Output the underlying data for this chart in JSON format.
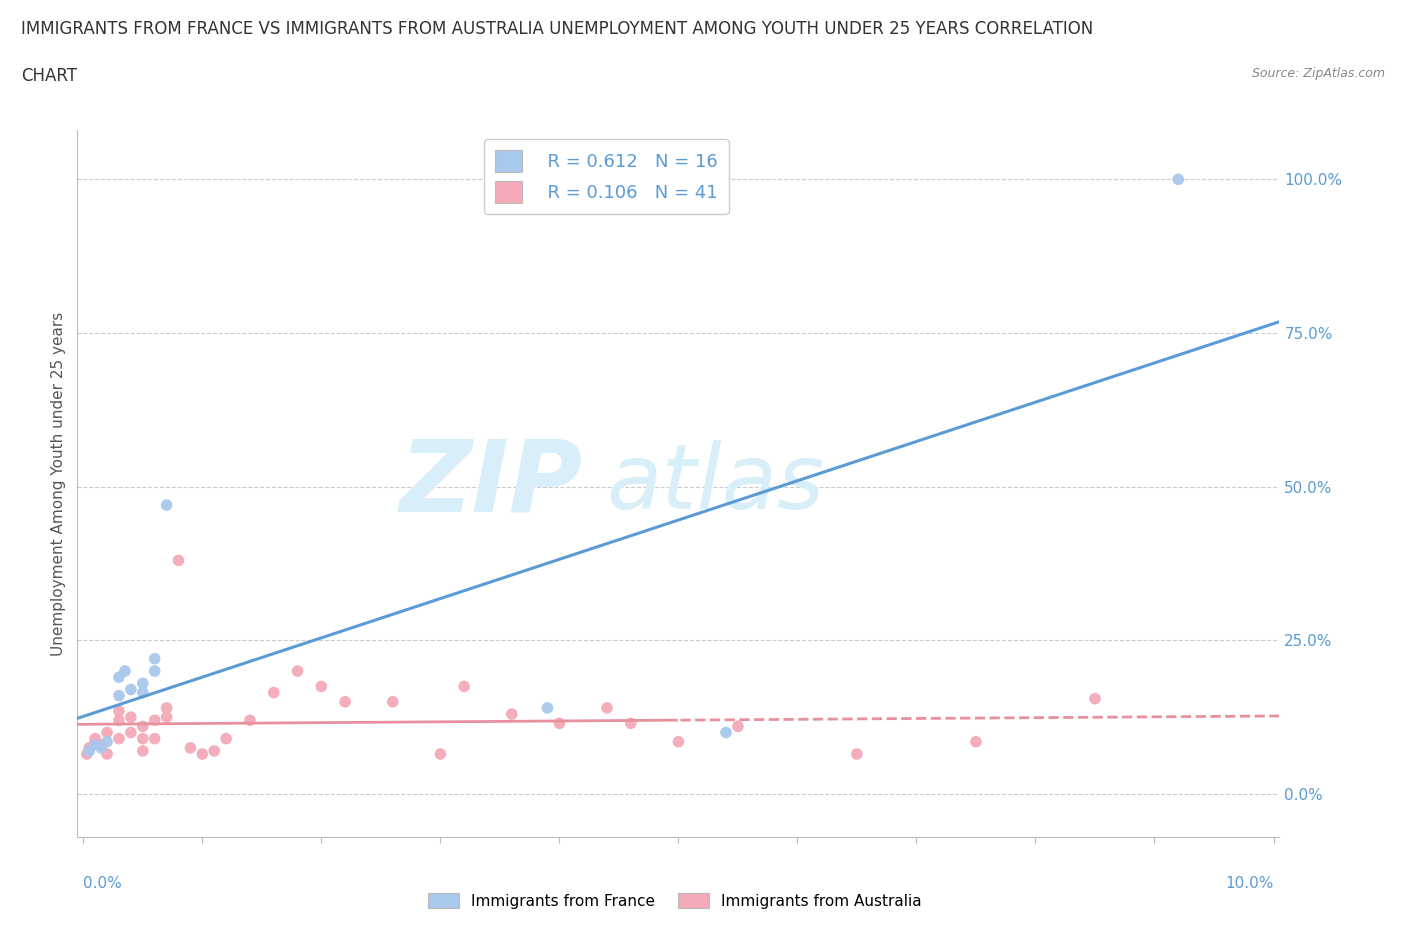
{
  "title_line1": "IMMIGRANTS FROM FRANCE VS IMMIGRANTS FROM AUSTRALIA UNEMPLOYMENT AMONG YOUTH UNDER 25 YEARS CORRELATION",
  "title_line2": "CHART",
  "source": "Source: ZipAtlas.com",
  "ylabel": "Unemployment Among Youth under 25 years",
  "ytick_labels": [
    "0.0%",
    "25.0%",
    "50.0%",
    "75.0%",
    "100.0%"
  ],
  "ytick_values": [
    0.0,
    0.25,
    0.5,
    0.75,
    1.0
  ],
  "xlim": [
    -0.0005,
    0.1005
  ],
  "ylim": [
    -0.07,
    1.08
  ],
  "color_france": "#A8C8EC",
  "color_australia": "#F4AAB8",
  "color_france_line": "#5B9BD5",
  "color_australia_line": "#E8909E",
  "legend_R_france": "R = 0.612",
  "legend_N_france": "N = 16",
  "legend_R_australia": "R = 0.106",
  "legend_N_australia": "N = 41",
  "france_x": [
    0.0005,
    0.001,
    0.0015,
    0.002,
    0.003,
    0.003,
    0.0035,
    0.004,
    0.005,
    0.005,
    0.006,
    0.006,
    0.007,
    0.039,
    0.054,
    0.092
  ],
  "france_y": [
    0.07,
    0.08,
    0.075,
    0.085,
    0.16,
    0.19,
    0.2,
    0.17,
    0.18,
    0.165,
    0.2,
    0.22,
    0.47,
    0.14,
    0.1,
    1.0
  ],
  "australia_x": [
    0.0003,
    0.0005,
    0.001,
    0.001,
    0.0015,
    0.002,
    0.002,
    0.003,
    0.003,
    0.003,
    0.004,
    0.004,
    0.005,
    0.005,
    0.005,
    0.006,
    0.006,
    0.007,
    0.007,
    0.008,
    0.009,
    0.01,
    0.011,
    0.012,
    0.014,
    0.016,
    0.018,
    0.02,
    0.022,
    0.026,
    0.03,
    0.032,
    0.036,
    0.04,
    0.044,
    0.046,
    0.05,
    0.055,
    0.065,
    0.075,
    0.085
  ],
  "australia_y": [
    0.065,
    0.075,
    0.085,
    0.09,
    0.08,
    0.065,
    0.1,
    0.09,
    0.12,
    0.135,
    0.1,
    0.125,
    0.07,
    0.09,
    0.11,
    0.09,
    0.12,
    0.125,
    0.14,
    0.38,
    0.075,
    0.065,
    0.07,
    0.09,
    0.12,
    0.165,
    0.2,
    0.175,
    0.15,
    0.15,
    0.065,
    0.175,
    0.13,
    0.115,
    0.14,
    0.115,
    0.085,
    0.11,
    0.065,
    0.085,
    0.155
  ],
  "gridline_values": [
    0.0,
    0.25,
    0.5,
    0.75,
    1.0
  ],
  "background_color": "#FFFFFF",
  "watermark_color": "#D8EEF8",
  "title_fontsize": 12,
  "axis_label_fontsize": 11,
  "tick_fontsize": 11,
  "accent_color": "#5B9BD5"
}
